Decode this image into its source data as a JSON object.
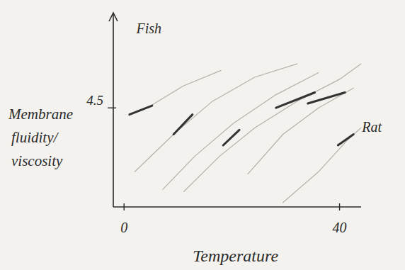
{
  "chart_data": {
    "type": "line",
    "x_label": "Temperature",
    "y_label": "Membrane fluidity/ viscosity",
    "xlim": [
      -2,
      44
    ],
    "xticks": [
      0,
      40
    ],
    "ylim": [
      0,
      8.5
    ],
    "yticks": [
      4.5
    ],
    "grid": false,
    "annotations": [
      {
        "text": "Fish",
        "x": 4.6,
        "y": 7.9
      },
      {
        "text": "Rat",
        "x": 46,
        "y": 3.4
      }
    ],
    "series": [
      {
        "color": "#b5b1a8",
        "line_style": "faint",
        "x": [
          1,
          5,
          11,
          18
        ],
        "values": [
          4.2,
          4.6,
          5.5,
          6.2
        ]
      },
      {
        "color": "#b5b1a8",
        "line_style": "faint",
        "x": [
          2,
          9.2,
          16.4,
          24.3,
          32.1
        ],
        "values": [
          1.6,
          3.3,
          4.8,
          5.9,
          6.5
        ]
      },
      {
        "color": "#b5b1a8",
        "line_style": "faint",
        "x": [
          7.2,
          13.1,
          20.3,
          28.2,
          36.1
        ],
        "values": [
          0.8,
          2.3,
          3.8,
          5.1,
          6.1
        ]
      },
      {
        "color": "#b5b1a8",
        "line_style": "faint",
        "x": [
          11.1,
          17.7,
          24.3,
          32.1,
          40,
          44
        ],
        "values": [
          0.7,
          2.3,
          3.6,
          4.8,
          5.8,
          6.5
        ]
      },
      {
        "color": "#b5b1a8",
        "line_style": "faint",
        "x": [
          23,
          29.5,
          36.1,
          42.6
        ],
        "values": [
          1.5,
          3.3,
          4.5,
          5.4
        ]
      },
      {
        "color": "#b5b1a8",
        "line_style": "faint",
        "x": [
          29.5,
          36.1,
          41.3,
          44
        ],
        "values": [
          0.2,
          1.6,
          3.0,
          3.6
        ]
      },
      {
        "color": "#333333",
        "line_style": "solid",
        "x": [
          1,
          5.2
        ],
        "values": [
          4.2,
          4.6
        ]
      },
      {
        "color": "#333333",
        "line_style": "solid",
        "x": [
          9.2,
          12.7
        ],
        "values": [
          3.3,
          4.2
        ]
      },
      {
        "color": "#333333",
        "line_style": "solid",
        "x": [
          18.4,
          21.4
        ],
        "values": [
          2.8,
          3.5
        ]
      },
      {
        "color": "#333333",
        "line_style": "solid",
        "x": [
          28.2,
          35.4
        ],
        "values": [
          4.5,
          5.2
        ]
      },
      {
        "color": "#333333",
        "line_style": "solid",
        "x": [
          34.1,
          41.0
        ],
        "values": [
          4.7,
          5.2
        ]
      },
      {
        "color": "#333333",
        "line_style": "solid",
        "x": [
          39.7,
          42.6
        ],
        "values": [
          2.8,
          3.3
        ]
      }
    ]
  }
}
